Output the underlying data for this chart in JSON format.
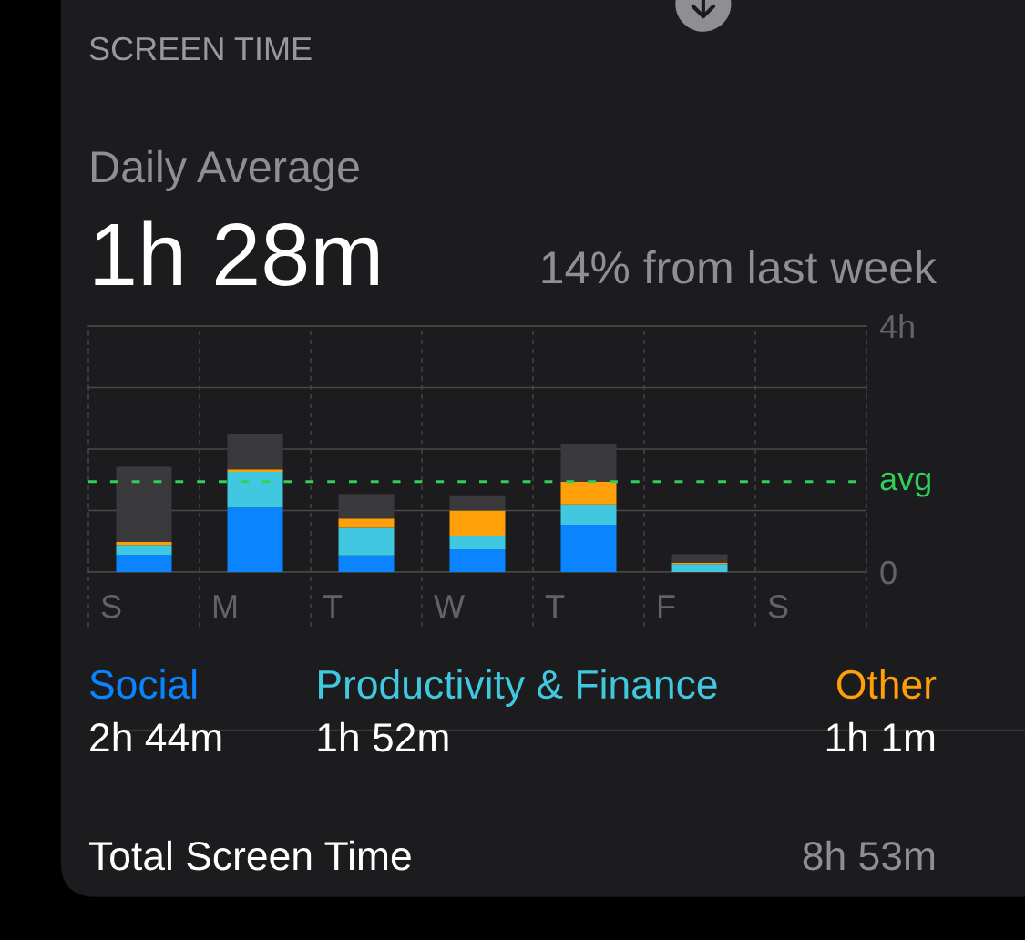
{
  "chart_data": {
    "type": "bar",
    "title": "Daily Average",
    "subtitle": "1h 28m",
    "categories": [
      "S",
      "M",
      "T",
      "W",
      "T",
      "F",
      "S"
    ],
    "series": [
      {
        "name": "Social",
        "color": "#0a84ff",
        "values": [
          0.28,
          1.05,
          0.27,
          0.37,
          0.77,
          null,
          null
        ]
      },
      {
        "name": "Productivity & Finance",
        "color": "#40c8e0",
        "values": [
          0.16,
          0.58,
          0.45,
          0.22,
          0.33,
          0.13,
          null
        ]
      },
      {
        "name": "Other",
        "color": "#ff9f0a",
        "values": [
          0.05,
          0.04,
          0.15,
          0.41,
          0.37,
          0.02,
          null
        ]
      },
      {
        "color": "#3a3a3c",
        "values": [
          1.22,
          0.58,
          0.4,
          0.25,
          0.62,
          0.14,
          null
        ]
      }
    ],
    "stacked": true,
    "ylim": [
      0,
      4
    ],
    "yticks": [
      0,
      {
        "value": 1,
        "label": null
      },
      {
        "value": 2,
        "label": null
      },
      {
        "value": 3,
        "label": null
      },
      {
        "value": 4,
        "label": "4h"
      }
    ],
    "ref_lines": [
      {
        "axis": "y",
        "value": 1.47,
        "label": "avg",
        "color": "#30d158",
        "line_style": "dashed"
      }
    ],
    "grid": true,
    "legend": "bottom",
    "annotations": [
      "SCREEN TIME",
      "14% from last week",
      "2h 44m",
      "1h 52m",
      "1h 1m",
      "Total Screen Time",
      "8h 53m"
    ]
  }
}
